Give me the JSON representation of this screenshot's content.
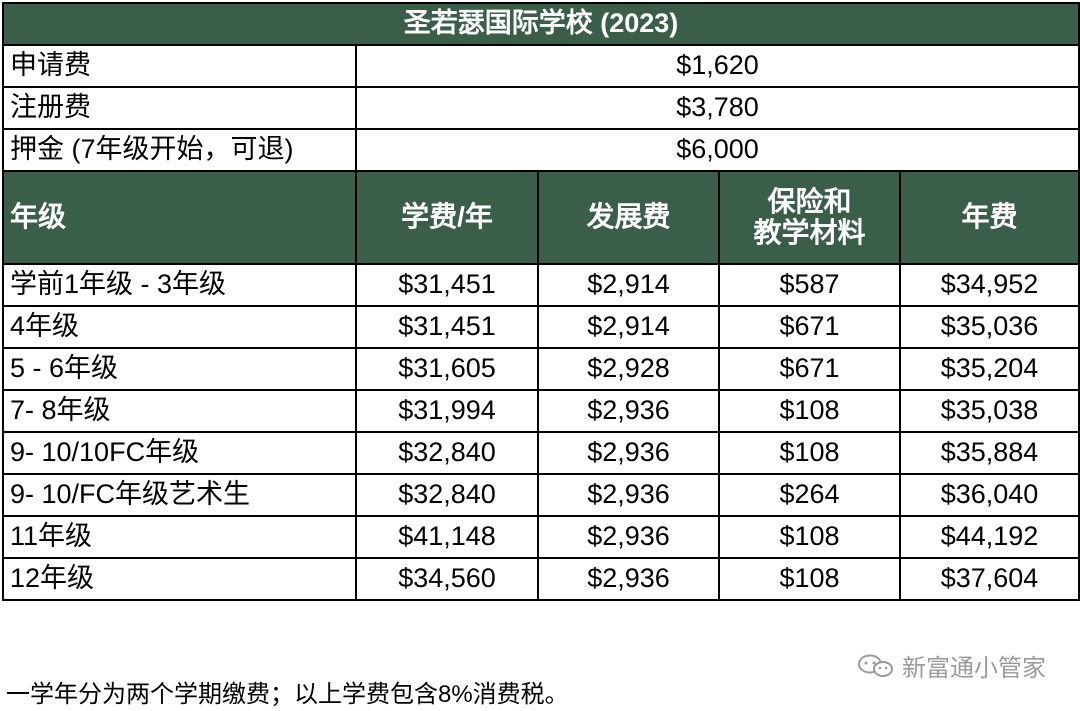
{
  "title": "圣若瑟国际学校 (2023)",
  "one_time_fees": [
    {
      "label": "申请费",
      "value": "$1,620"
    },
    {
      "label": "注册费",
      "value": "$3,780"
    },
    {
      "label": "押金 (7年级开始，可退)",
      "value": "$6,000"
    }
  ],
  "columns": {
    "grade": "年级",
    "tuition": "学费/年",
    "development": "发展费",
    "insurance_line1": "保险和",
    "insurance_line2": "教学材料",
    "annual": "年费"
  },
  "rows": [
    {
      "grade": "学前1年级 - 3年级",
      "tuition": "$31,451",
      "development": "$2,914",
      "insurance": "$587",
      "annual": "$34,952"
    },
    {
      "grade": "4年级",
      "tuition": "$31,451",
      "development": "$2,914",
      "insurance": "$671",
      "annual": "$35,036"
    },
    {
      "grade": "5 - 6年级",
      "tuition": "$31,605",
      "development": "$2,928",
      "insurance": "$671",
      "annual": "$35,204"
    },
    {
      "grade": "7- 8年级",
      "tuition": "$31,994",
      "development": "$2,936",
      "insurance": "$108",
      "annual": "$35,038"
    },
    {
      "grade": "9- 10/10FC年级",
      "tuition": "$32,840",
      "development": "$2,936",
      "insurance": "$108",
      "annual": "$35,884"
    },
    {
      "grade": "9- 10/FC年级艺术生",
      "tuition": "$32,840",
      "development": "$2,936",
      "insurance": "$264",
      "annual": "$36,040"
    },
    {
      "grade": "11年级",
      "tuition": "$41,148",
      "development": "$2,936",
      "insurance": "$108",
      "annual": "$44,192"
    },
    {
      "grade": "12年级",
      "tuition": "$34,560",
      "development": "$2,936",
      "insurance": "$108",
      "annual": "$37,604"
    }
  ],
  "footnote": "一学年分为两个学期缴费；以上学费包含8%消费税。",
  "watermark": {
    "icon": "wechat-icon",
    "text": "新富通小管家"
  },
  "colors": {
    "header_bg": "#3a5e49",
    "header_text": "#ffffff",
    "watermark_text": "#9a9a9a"
  }
}
